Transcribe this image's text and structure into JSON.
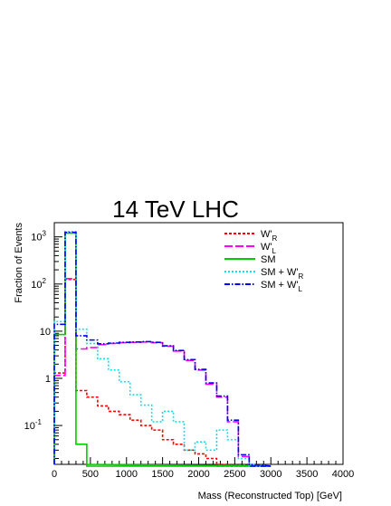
{
  "chart_data": {
    "type": "histogram",
    "title": "14 TeV LHC",
    "xlabel": "Mass (Reconstructed Top) [GeV]",
    "ylabel": "Fraction of Events",
    "xlim": [
      0,
      4000
    ],
    "ylim": [
      0.015,
      2000
    ],
    "yscale": "log",
    "grid": false,
    "legend": "top-right",
    "x_tick_labels": [
      "0",
      "500",
      "1000",
      "1500",
      "2000",
      "2500",
      "3000",
      "3500",
      "4000"
    ],
    "y_tick_labels": [
      {
        "base": "10",
        "exp": "-1",
        "value": 0.1
      },
      {
        "base": "1",
        "exp": "",
        "value": 1
      },
      {
        "base": "10",
        "exp": "",
        "value": 10
      },
      {
        "base": "10",
        "exp": "2",
        "value": 100
      },
      {
        "base": "10",
        "exp": "3",
        "value": 1000
      }
    ],
    "bin_edges": [
      0,
      150,
      300,
      450,
      600,
      750,
      900,
      1050,
      1200,
      1350,
      1500,
      1650,
      1800,
      1950,
      2100,
      2250,
      2400,
      2550,
      2700,
      2850,
      3000
    ],
    "series": [
      {
        "key": "wr",
        "legend_main": "W'",
        "legend_sub": "R",
        "color": "#ff0000",
        "dash": "3,2",
        "values": [
          1.3,
          125,
          0.55,
          0.4,
          0.26,
          0.2,
          0.17,
          0.13,
          0.1,
          0.08,
          0.05,
          0.04,
          0.03,
          0.025,
          0.02,
          null,
          null,
          null,
          null,
          null
        ]
      },
      {
        "key": "wl",
        "legend_main": "W'",
        "legend_sub": "L",
        "color": "#ff00ff",
        "dash": "9,3",
        "values": [
          1.15,
          130,
          4.2,
          4.5,
          5.2,
          5.5,
          5.7,
          5.8,
          5.9,
          5.7,
          4.8,
          3.8,
          2.4,
          1.5,
          0.75,
          0.4,
          0.12,
          0.022,
          null,
          null
        ]
      },
      {
        "key": "sm",
        "legend_main": "SM",
        "legend_sub": "",
        "color": "#00cc00",
        "dash": "",
        "values": [
          8.5,
          1200,
          0.04,
          null,
          null,
          null,
          null,
          null,
          null,
          null,
          null,
          null,
          null,
          null,
          null,
          null,
          null,
          null,
          null,
          null
        ]
      },
      {
        "key": "smwr",
        "legend_main": "SM + W'",
        "legend_sub": "R",
        "color": "#00e5ee",
        "dash": "2,2",
        "values": [
          16,
          1300,
          11,
          5.5,
          2.6,
          1.5,
          0.85,
          0.45,
          0.27,
          0.12,
          0.2,
          0.12,
          0.03,
          0.045,
          0.03,
          0.08,
          0.05,
          0.02,
          null,
          null
        ]
      },
      {
        "key": "smwl",
        "legend_main": "SM + W'",
        "legend_sub": "L",
        "color": "#0000ff",
        "dash": "6,2,1.5,2",
        "values": [
          14,
          1250,
          8,
          6.5,
          5.4,
          5.6,
          5.8,
          5.9,
          6,
          5.8,
          4.9,
          3.9,
          2.5,
          1.55,
          0.8,
          0.42,
          0.13,
          0.024,
          null,
          null
        ]
      }
    ]
  }
}
